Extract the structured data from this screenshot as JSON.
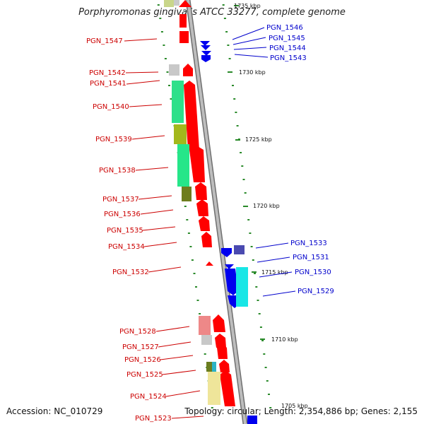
{
  "title": "Porphyromonas gingivalis ATCC 33277, complete genome",
  "accession": "Accession: NC_010729",
  "topology": "Topology: circular; Length: 2,354,886 bp; Genes: 2,155",
  "colors": {
    "forward": "#ff0000",
    "reverse": "#0000ee",
    "backbone": "#999999",
    "ticks": "#2a8a2a"
  },
  "ticks": [
    "1735 kbp",
    "1730 kbp",
    "1725 kbp",
    "1720 kbp",
    "1715 kbp",
    "1710 kbp",
    "1705 kbp"
  ],
  "genes_left": [
    "PGN_1547",
    "PGN_1542",
    "PGN_1541",
    "PGN_1540",
    "PGN_1539",
    "PGN_1538",
    "PGN_1537",
    "PGN_1536",
    "PGN_1535",
    "PGN_1534",
    "PGN_1532",
    "PGN_1528",
    "PGN_1527",
    "PGN_1526",
    "PGN_1525",
    "PGN_1524",
    "PGN_1523"
  ],
  "genes_right": [
    "PGN_1546",
    "PGN_1545",
    "PGN_1544",
    "PGN_1543",
    "PGN_1533",
    "PGN_1531",
    "PGN_1530",
    "PGN_1529"
  ]
}
